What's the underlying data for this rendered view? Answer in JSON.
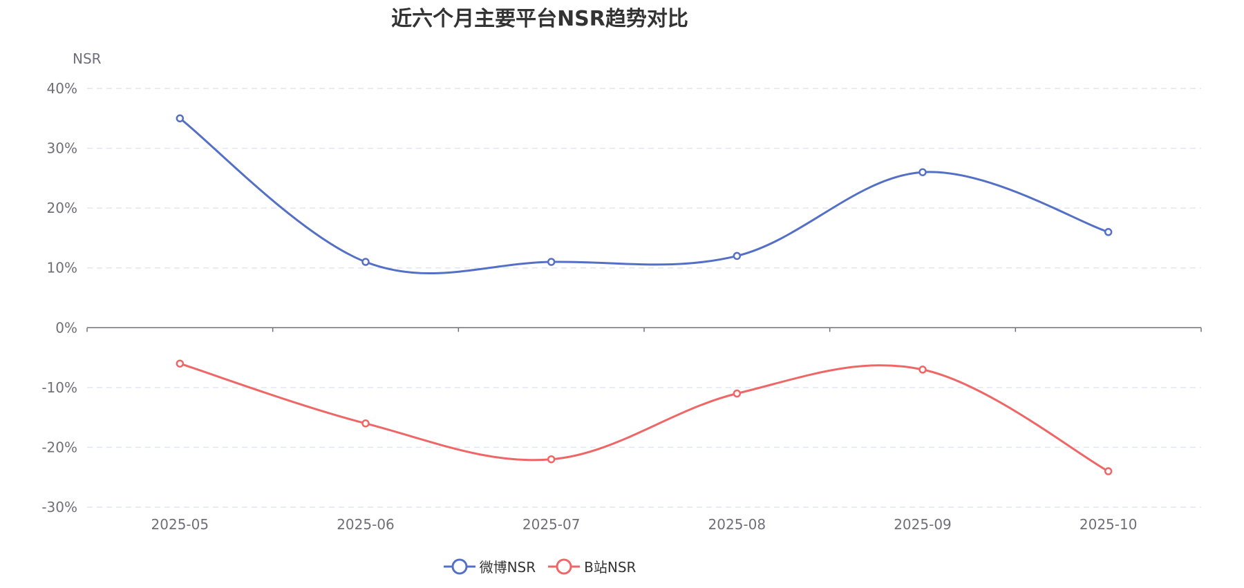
{
  "chart_data": {
    "type": "line",
    "title": "近六个月主要平台NSR趋势对比",
    "ylabel": "NSR",
    "xlabel": "",
    "categories": [
      "2025-05",
      "2025-06",
      "2025-07",
      "2025-08",
      "2025-09",
      "2025-10"
    ],
    "y_ticks": [
      "40%",
      "30%",
      "20%",
      "10%",
      "0%",
      "-10%",
      "-20%",
      "-30%"
    ],
    "ylim": [
      -30,
      40
    ],
    "grid": true,
    "legend_position": "bottom",
    "series": [
      {
        "name": "微博NSR",
        "color": "#5470c6",
        "values": [
          35,
          11,
          11,
          12,
          26,
          16
        ]
      },
      {
        "name": "B站NSR",
        "color": "#ee6666",
        "values": [
          -6,
          -16,
          -22,
          -11,
          -7,
          -24
        ]
      }
    ]
  }
}
